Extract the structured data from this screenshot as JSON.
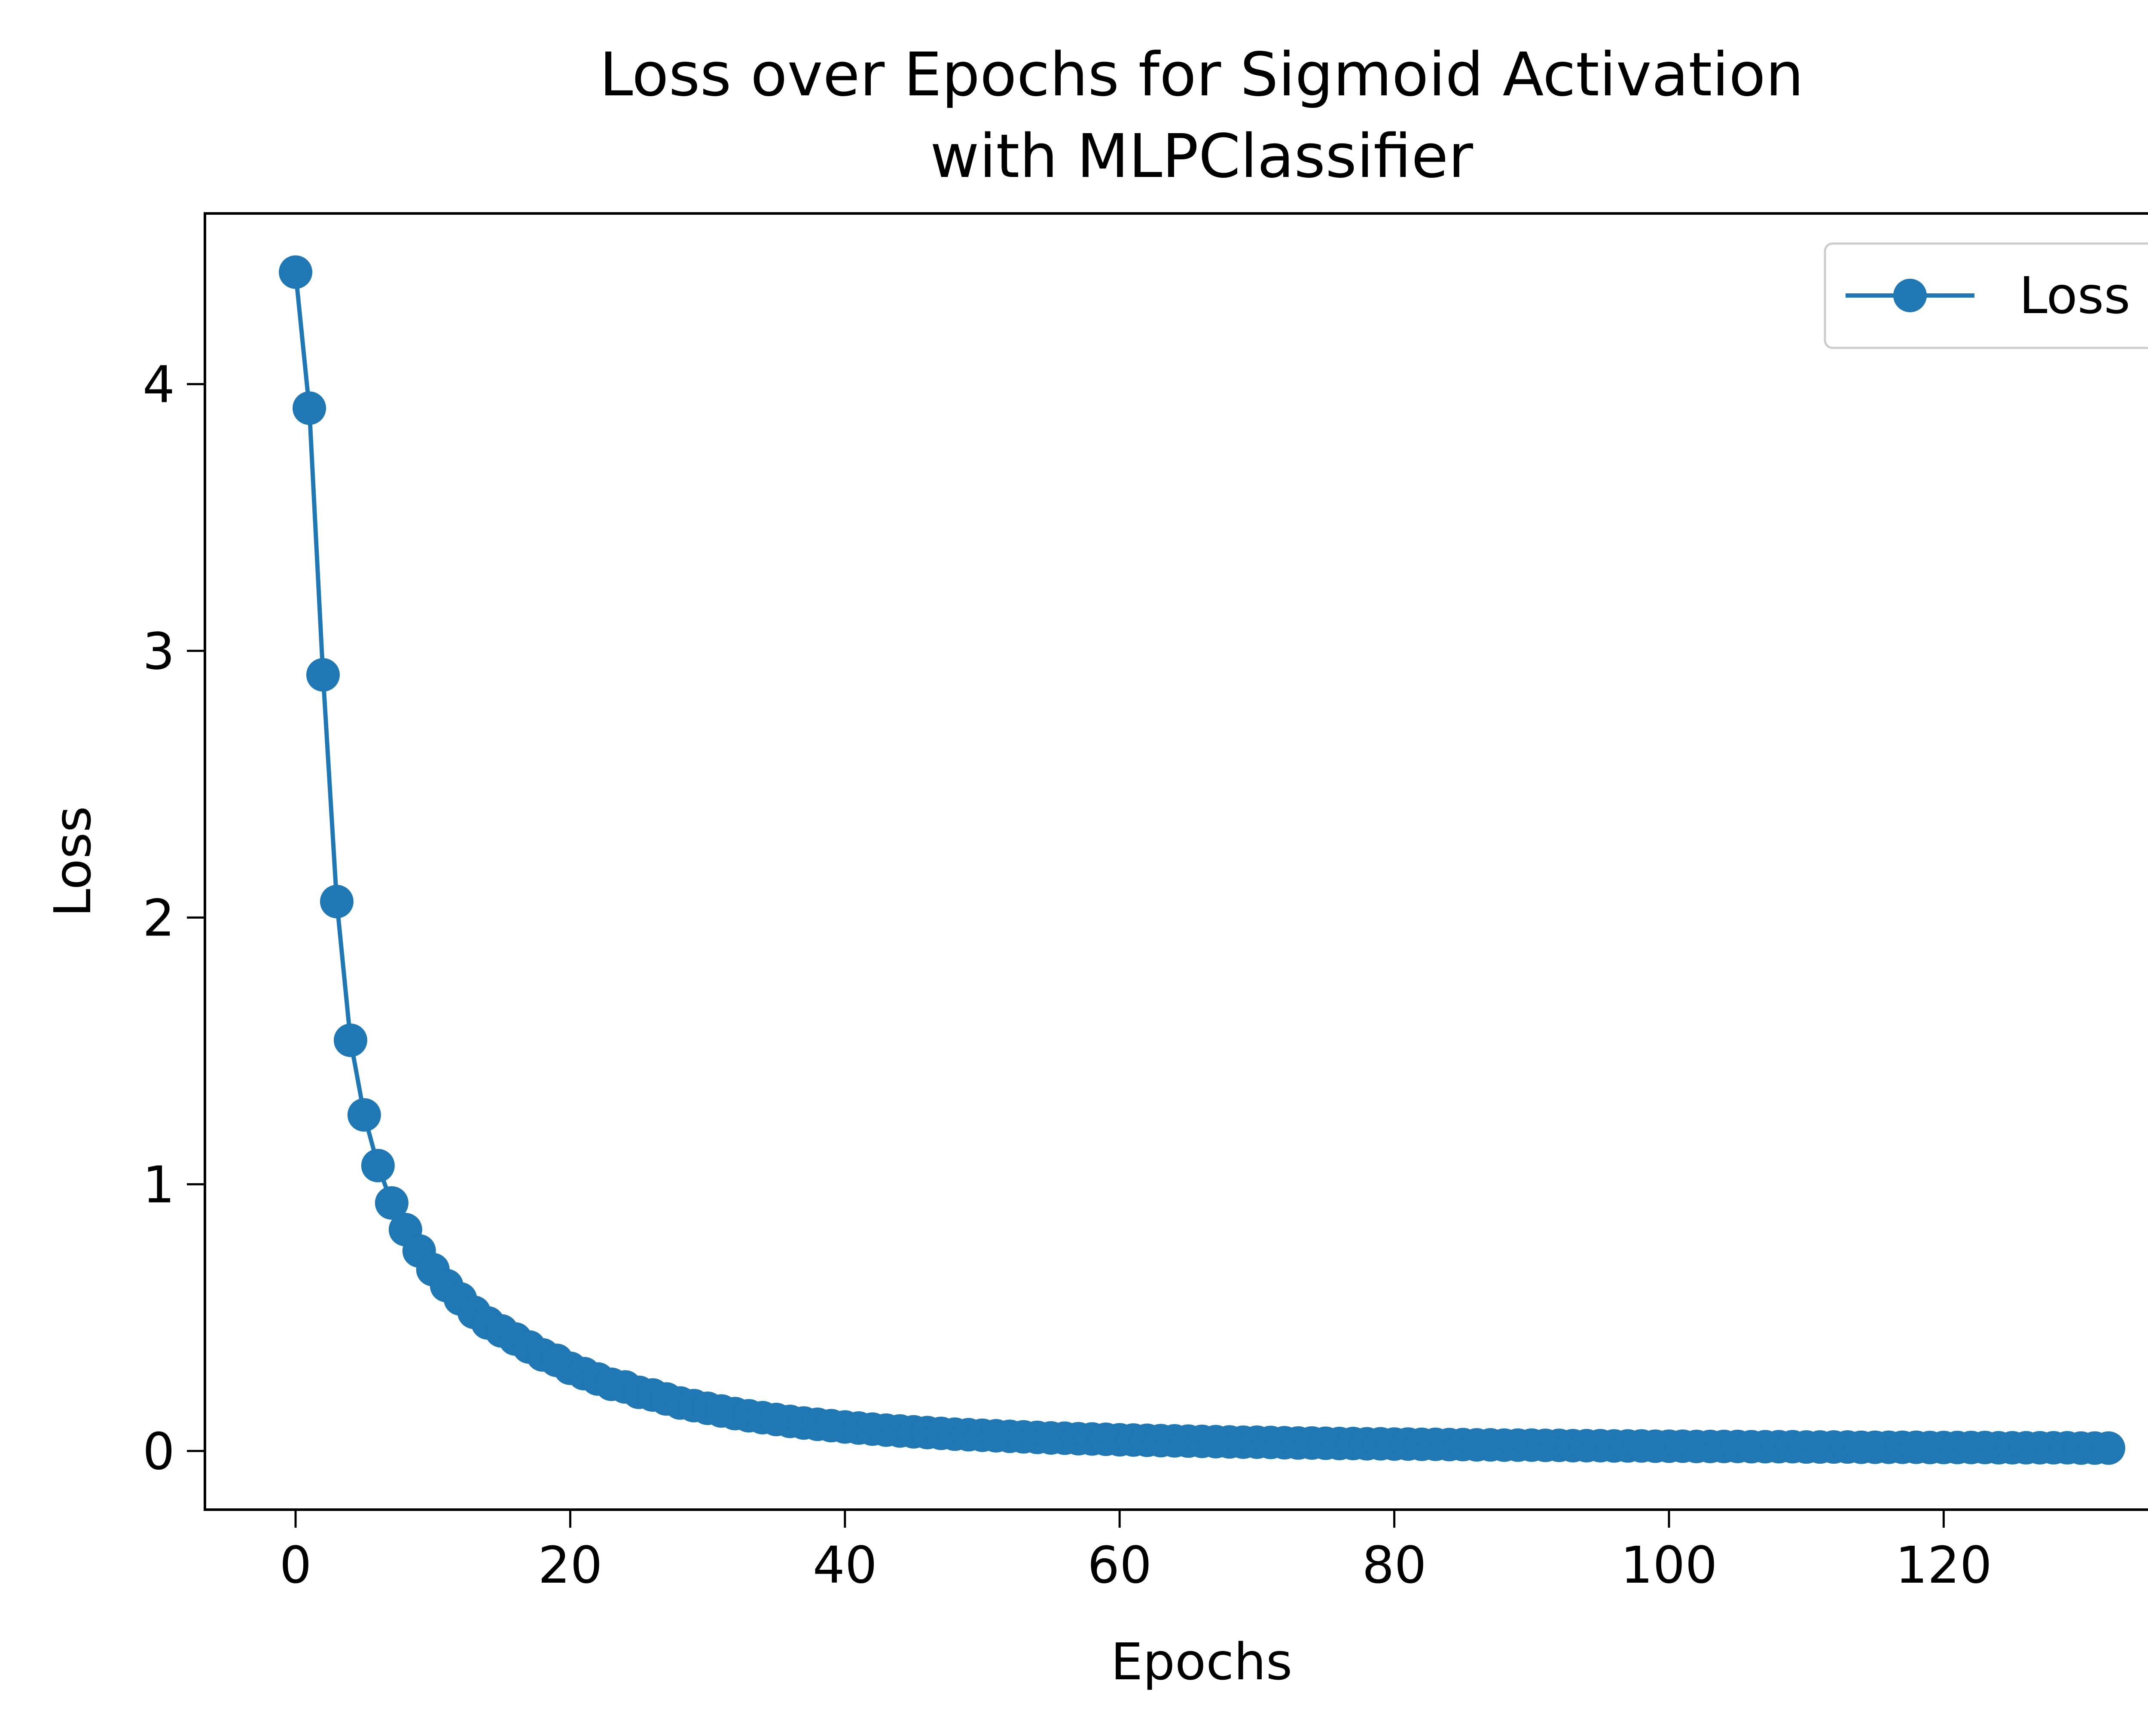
{
  "chart_data": {
    "type": "line",
    "title_lines": [
      "Loss over Epochs for Sigmoid Activation",
      "with MLPClassifier"
    ],
    "xlabel": "Epochs",
    "ylabel": "Loss",
    "xlim": [
      -6.6,
      138.6
    ],
    "ylim": [
      -0.22,
      4.64
    ],
    "xticks": [
      0,
      20,
      40,
      60,
      80,
      100,
      120
    ],
    "yticks": [
      0,
      1,
      2,
      3,
      4
    ],
    "grid": false,
    "legend_position": "upper right",
    "series": [
      {
        "name": "Loss",
        "color": "#1f77b4",
        "marker": "circle",
        "x": [
          0,
          1,
          2,
          3,
          4,
          5,
          6,
          7,
          8,
          9,
          10,
          11,
          12,
          13,
          14,
          15,
          16,
          17,
          18,
          19,
          20,
          21,
          22,
          23,
          24,
          25,
          26,
          27,
          28,
          29,
          30,
          31,
          32,
          33,
          34,
          35,
          36,
          37,
          38,
          39,
          40,
          41,
          42,
          43,
          44,
          45,
          46,
          47,
          48,
          49,
          50,
          51,
          52,
          53,
          54,
          55,
          56,
          57,
          58,
          59,
          60,
          61,
          62,
          63,
          64,
          65,
          66,
          67,
          68,
          69,
          70,
          71,
          72,
          73,
          74,
          75,
          76,
          77,
          78,
          79,
          80,
          81,
          82,
          83,
          84,
          85,
          86,
          87,
          88,
          89,
          90,
          91,
          92,
          93,
          94,
          95,
          96,
          97,
          98,
          99,
          100,
          101,
          102,
          103,
          104,
          105,
          106,
          107,
          108,
          109,
          110,
          111,
          112,
          113,
          114,
          115,
          116,
          117,
          118,
          119,
          120,
          121,
          122,
          123,
          124,
          125,
          126,
          127,
          128,
          129,
          130,
          131,
          132
        ],
        "values": [
          4.42,
          3.91,
          2.91,
          2.06,
          1.54,
          1.26,
          1.07,
          0.93,
          0.83,
          0.75,
          0.68,
          0.62,
          0.57,
          0.52,
          0.48,
          0.45,
          0.42,
          0.39,
          0.36,
          0.34,
          0.31,
          0.29,
          0.27,
          0.25,
          0.24,
          0.22,
          0.21,
          0.195,
          0.18,
          0.17,
          0.16,
          0.15,
          0.14,
          0.132,
          0.125,
          0.118,
          0.111,
          0.105,
          0.1,
          0.095,
          0.09,
          0.086,
          0.082,
          0.078,
          0.075,
          0.072,
          0.069,
          0.066,
          0.063,
          0.061,
          0.059,
          0.057,
          0.055,
          0.053,
          0.051,
          0.049,
          0.048,
          0.046,
          0.045,
          0.044,
          0.042,
          0.041,
          0.04,
          0.039,
          0.038,
          0.037,
          0.036,
          0.035,
          0.034,
          0.033,
          0.033,
          0.032,
          0.031,
          0.03,
          0.03,
          0.029,
          0.028,
          0.028,
          0.027,
          0.027,
          0.026,
          0.026,
          0.025,
          0.025,
          0.024,
          0.024,
          0.023,
          0.023,
          0.022,
          0.022,
          0.022,
          0.021,
          0.021,
          0.02,
          0.02,
          0.02,
          0.019,
          0.019,
          0.019,
          0.018,
          0.018,
          0.018,
          0.017,
          0.017,
          0.017,
          0.017,
          0.016,
          0.016,
          0.016,
          0.016,
          0.015,
          0.015,
          0.015,
          0.015,
          0.014,
          0.014,
          0.014,
          0.014,
          0.014,
          0.013,
          0.013,
          0.013,
          0.013,
          0.013,
          0.012,
          0.012,
          0.012,
          0.012,
          0.012,
          0.012,
          0.011,
          0.011,
          0.011
        ]
      }
    ]
  }
}
